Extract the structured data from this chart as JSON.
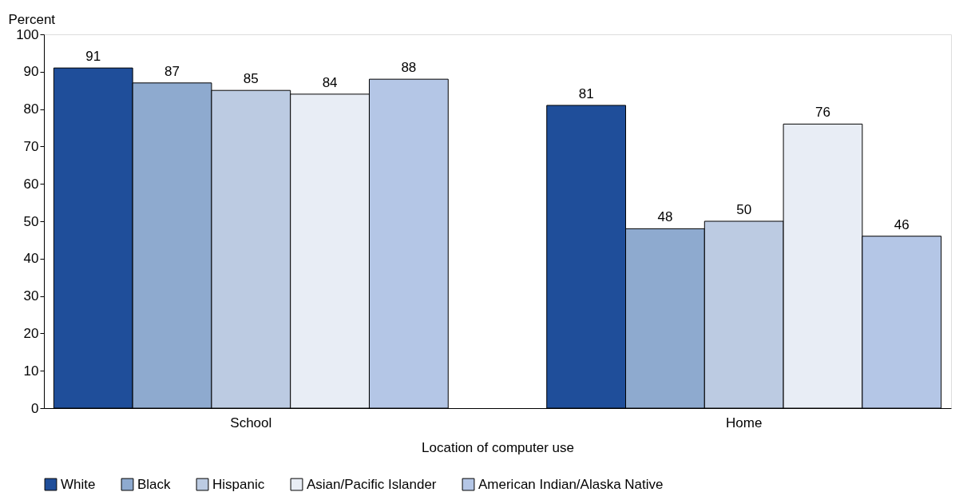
{
  "chart_data": {
    "type": "bar",
    "xlabel": "Location of computer use",
    "ylabel": "Percent",
    "categories": [
      "School",
      "Home"
    ],
    "series": [
      {
        "name": "White",
        "color": "#1f4e9a",
        "values": [
          91,
          81
        ]
      },
      {
        "name": "Black",
        "color": "#8eaacf",
        "values": [
          87,
          48
        ]
      },
      {
        "name": "Hispanic",
        "color": "#bccbe2",
        "values": [
          85,
          50
        ]
      },
      {
        "name": "Asian/Pacific Islander",
        "color": "#e8edf5",
        "values": [
          84,
          76
        ]
      },
      {
        "name": "American Indian/Alaska Native",
        "color": "#b4c6e6",
        "values": [
          88,
          46
        ]
      }
    ],
    "ylim": [
      0,
      100
    ],
    "yticks": [
      0,
      10,
      20,
      30,
      40,
      50,
      60,
      70,
      80,
      90,
      100
    ],
    "data_labels": true,
    "legend": "bottom",
    "grid": false
  }
}
